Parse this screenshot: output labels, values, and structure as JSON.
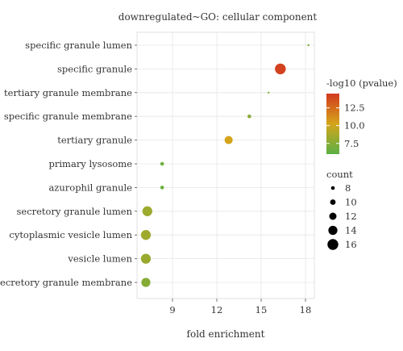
{
  "chart_data": {
    "type": "scatter",
    "title": "downregulated~GO: cellular component",
    "xlabel": "fold enrichment",
    "ylabel": "",
    "xlim": [
      6.6,
      18.6
    ],
    "xticks": [
      9,
      12,
      15,
      18
    ],
    "grid": true,
    "terms": [
      "specific granule lumen",
      "specific granule",
      "tertiary granule membrane",
      "specific granule membrane",
      "tertiary granule",
      "primary lysosome",
      "azurophil granule",
      "secretory granule lumen",
      "cytoplasmic vesicle lumen",
      "vesicle lumen",
      "secretory granule membrane"
    ],
    "points": [
      {
        "term": "specific granule lumen",
        "fold_enrichment": 18.2,
        "neg_log10_pvalue": 7.0,
        "count": 6
      },
      {
        "term": "specific granule",
        "fold_enrichment": 16.3,
        "neg_log10_pvalue": 14.2,
        "count": 16
      },
      {
        "term": "tertiary granule membrane",
        "fold_enrichment": 15.5,
        "neg_log10_pvalue": 7.2,
        "count": 6
      },
      {
        "term": "specific granule membrane",
        "fold_enrichment": 14.2,
        "neg_log10_pvalue": 7.6,
        "count": 8
      },
      {
        "term": "tertiary granule",
        "fold_enrichment": 12.8,
        "neg_log10_pvalue": 10.3,
        "count": 13
      },
      {
        "term": "primary lysosome",
        "fold_enrichment": 8.3,
        "neg_log10_pvalue": 6.6,
        "count": 8
      },
      {
        "term": "azurophil granule",
        "fold_enrichment": 8.3,
        "neg_log10_pvalue": 6.6,
        "count": 8
      },
      {
        "term": "secretory granule lumen",
        "fold_enrichment": 7.3,
        "neg_log10_pvalue": 8.3,
        "count": 15
      },
      {
        "term": "cytoplasmic vesicle lumen",
        "fold_enrichment": 7.2,
        "neg_log10_pvalue": 8.4,
        "count": 15
      },
      {
        "term": "vesicle lumen",
        "fold_enrichment": 7.2,
        "neg_log10_pvalue": 8.2,
        "count": 15
      },
      {
        "term": "secretory granule membrane",
        "fold_enrichment": 7.2,
        "neg_log10_pvalue": 7.5,
        "count": 14
      }
    ],
    "color_legend": {
      "title": "-log10 (pvalue)",
      "min": 6.0,
      "max": 14.5,
      "ticks": [
        12.5,
        10.0,
        7.5
      ],
      "tick_labels": [
        "12.5",
        "10.0",
        "7.5"
      ],
      "low_color": "#5ab045",
      "mid_color": "#d4a51b",
      "high_color": "#d23a1e"
    },
    "size_legend": {
      "title": "count",
      "values": [
        8,
        10,
        12,
        14,
        16
      ],
      "labels": [
        "8",
        "10",
        "12",
        "14",
        "16"
      ],
      "color": "#000000"
    },
    "legend_placement": "right"
  }
}
